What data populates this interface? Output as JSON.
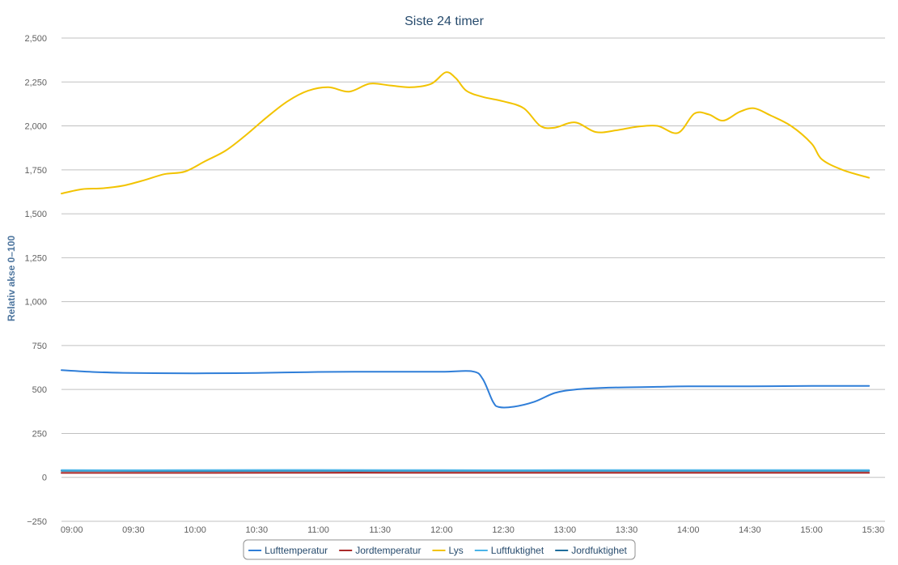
{
  "chart_data": {
    "type": "line",
    "title": "Siste 24 timer",
    "xlabel": "",
    "ylabel": "Relativ akse 0–100",
    "ylim": [
      -250,
      2500
    ],
    "yticks": [
      {
        "value": -250,
        "label": "−250"
      },
      {
        "value": 0,
        "label": "0"
      },
      {
        "value": 250,
        "label": "250"
      },
      {
        "value": 500,
        "label": "500"
      },
      {
        "value": 750,
        "label": "750"
      },
      {
        "value": 1000,
        "label": "1,000"
      },
      {
        "value": 1250,
        "label": "1,250"
      },
      {
        "value": 1500,
        "label": "1,500"
      },
      {
        "value": 1750,
        "label": "1,750"
      },
      {
        "value": 2000,
        "label": "2,000"
      },
      {
        "value": 2250,
        "label": "2,250"
      },
      {
        "value": 2500,
        "label": "2,500"
      }
    ],
    "x_range": [
      "08:55",
      "15:30"
    ],
    "xticks": [
      "09:00",
      "09:30",
      "10:00",
      "10:30",
      "11:00",
      "11:30",
      "12:00",
      "12:30",
      "13:00",
      "13:30",
      "14:00",
      "14:30",
      "15:00",
      "15:30"
    ],
    "grid": true,
    "legend_position": "bottom-center",
    "series": [
      {
        "name": "Lufttemperatur",
        "color": "#2f7ed8",
        "points": [
          [
            "08:55",
            610
          ],
          [
            "09:10",
            600
          ],
          [
            "09:25",
            595
          ],
          [
            "09:40",
            593
          ],
          [
            "10:00",
            592
          ],
          [
            "10:30",
            594
          ],
          [
            "11:00",
            600
          ],
          [
            "11:30",
            601
          ],
          [
            "12:00",
            601
          ],
          [
            "12:15",
            603
          ],
          [
            "12:20",
            560
          ],
          [
            "12:25",
            430
          ],
          [
            "12:28",
            400
          ],
          [
            "12:35",
            402
          ],
          [
            "12:45",
            430
          ],
          [
            "12:55",
            480
          ],
          [
            "13:05",
            500
          ],
          [
            "13:20",
            510
          ],
          [
            "13:45",
            515
          ],
          [
            "14:00",
            518
          ],
          [
            "14:30",
            518
          ],
          [
            "15:00",
            520
          ],
          [
            "15:28",
            520
          ]
        ]
      },
      {
        "name": "Jordtemperatur",
        "color": "#aa2a2a",
        "points": [
          [
            "08:55",
            25
          ],
          [
            "10:00",
            25
          ],
          [
            "11:00",
            26
          ],
          [
            "12:00",
            26
          ],
          [
            "13:00",
            26
          ],
          [
            "14:00",
            26
          ],
          [
            "15:00",
            26
          ],
          [
            "15:28",
            26
          ]
        ]
      },
      {
        "name": "Lys",
        "color": "#f2c300",
        "points": [
          [
            "08:55",
            1615
          ],
          [
            "09:05",
            1640
          ],
          [
            "09:15",
            1645
          ],
          [
            "09:25",
            1660
          ],
          [
            "09:35",
            1690
          ],
          [
            "09:45",
            1725
          ],
          [
            "09:55",
            1740
          ],
          [
            "10:05",
            1800
          ],
          [
            "10:15",
            1860
          ],
          [
            "10:25",
            1950
          ],
          [
            "10:35",
            2050
          ],
          [
            "10:45",
            2140
          ],
          [
            "10:55",
            2200
          ],
          [
            "11:05",
            2220
          ],
          [
            "11:15",
            2195
          ],
          [
            "11:25",
            2240
          ],
          [
            "11:35",
            2230
          ],
          [
            "11:45",
            2220
          ],
          [
            "11:55",
            2240
          ],
          [
            "12:02",
            2305
          ],
          [
            "12:07",
            2270
          ],
          [
            "12:12",
            2200
          ],
          [
            "12:20",
            2165
          ],
          [
            "12:30",
            2140
          ],
          [
            "12:40",
            2100
          ],
          [
            "12:48",
            2000
          ],
          [
            "12:55",
            1990
          ],
          [
            "13:05",
            2020
          ],
          [
            "13:15",
            1965
          ],
          [
            "13:25",
            1975
          ],
          [
            "13:35",
            1995
          ],
          [
            "13:45",
            2000
          ],
          [
            "13:55",
            1960
          ],
          [
            "14:03",
            2070
          ],
          [
            "14:10",
            2065
          ],
          [
            "14:17",
            2030
          ],
          [
            "14:25",
            2080
          ],
          [
            "14:32",
            2100
          ],
          [
            "14:40",
            2060
          ],
          [
            "14:50",
            2000
          ],
          [
            "15:00",
            1900
          ],
          [
            "15:05",
            1810
          ],
          [
            "15:15",
            1750
          ],
          [
            "15:28",
            1705
          ]
        ]
      },
      {
        "name": "Luftfuktighet",
        "color": "#4ab4e8",
        "points": [
          [
            "08:55",
            41
          ],
          [
            "10:00",
            41
          ],
          [
            "11:00",
            42
          ],
          [
            "12:00",
            41
          ],
          [
            "13:00",
            41
          ],
          [
            "14:00",
            41
          ],
          [
            "15:00",
            41
          ],
          [
            "15:28",
            41
          ]
        ]
      },
      {
        "name": "Jordfuktighet",
        "color": "#1f6e9c",
        "points": [
          [
            "08:55",
            37
          ],
          [
            "10:00",
            36
          ],
          [
            "11:00",
            37
          ],
          [
            "12:00",
            37
          ],
          [
            "13:00",
            37
          ],
          [
            "14:00",
            37
          ],
          [
            "15:00",
            37
          ],
          [
            "15:28",
            37
          ]
        ]
      }
    ]
  }
}
